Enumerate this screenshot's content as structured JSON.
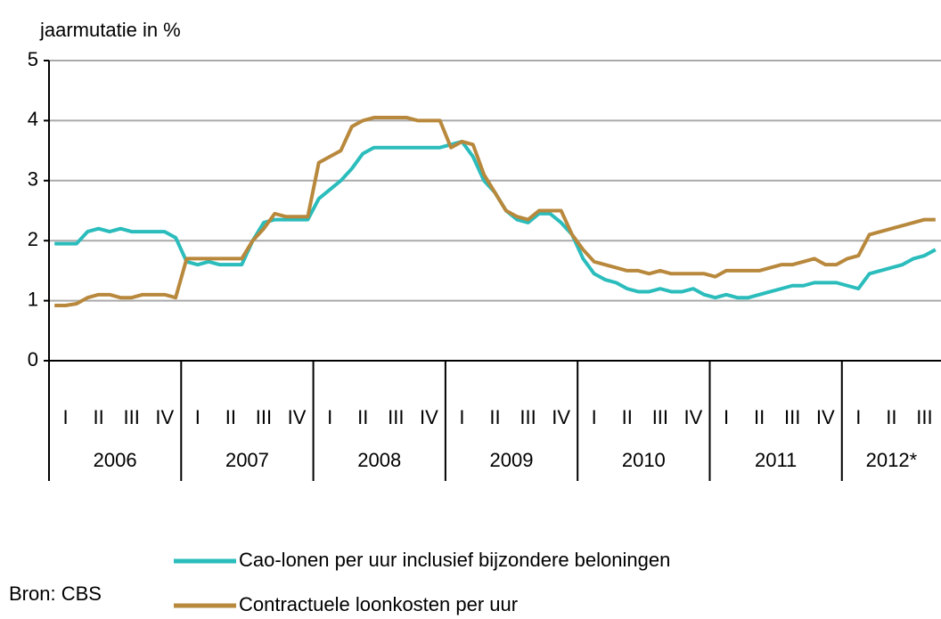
{
  "chart_data": {
    "type": "line",
    "y_axis_label": "jaarmutatie in %",
    "source": "Bron: CBS",
    "categories": [
      null,
      "I",
      null,
      null,
      "II",
      null,
      null,
      "III",
      null,
      null,
      "IV",
      null,
      null,
      "I",
      null,
      null,
      "II",
      null,
      null,
      "III",
      null,
      null,
      "IV",
      null,
      null,
      "I",
      null,
      null,
      "II",
      null,
      null,
      "III",
      null,
      null,
      "IV",
      null,
      null,
      "I",
      null,
      null,
      "II",
      null,
      null,
      "III",
      null,
      null,
      "IV",
      null,
      null,
      "I",
      null,
      null,
      "II",
      null,
      null,
      "III",
      null,
      null,
      "IV",
      null,
      null,
      "I",
      null,
      null,
      "II",
      null,
      null,
      "III",
      null,
      null,
      "IV",
      null,
      null,
      "I",
      null,
      null,
      "II",
      null,
      null,
      "III",
      null
    ],
    "years": [
      "2006",
      "2007",
      "2008",
      "2009",
      "2010",
      "2011",
      "2012*"
    ],
    "ylim": [
      0,
      5
    ],
    "yticks": [
      0,
      1,
      2,
      3,
      4,
      5
    ],
    "grid": true,
    "series": [
      {
        "name": "Cao-lonen per uur inclusief bijzondere beloningen",
        "color": "#2bbcbc",
        "values": [
          1.95,
          1.95,
          1.95,
          2.15,
          2.2,
          2.15,
          2.2,
          2.15,
          2.15,
          2.15,
          2.15,
          2.05,
          1.65,
          1.6,
          1.65,
          1.6,
          1.6,
          1.6,
          2.0,
          2.3,
          2.35,
          2.35,
          2.35,
          2.35,
          2.7,
          2.85,
          3.0,
          3.2,
          3.45,
          3.55,
          3.55,
          3.55,
          3.55,
          3.55,
          3.55,
          3.55,
          3.6,
          3.65,
          3.4,
          3.0,
          2.8,
          2.5,
          2.35,
          2.3,
          2.45,
          2.45,
          2.3,
          2.1,
          1.7,
          1.45,
          1.35,
          1.3,
          1.2,
          1.15,
          1.15,
          1.2,
          1.15,
          1.15,
          1.2,
          1.1,
          1.05,
          1.1,
          1.05,
          1.05,
          1.1,
          1.15,
          1.2,
          1.25,
          1.25,
          1.3,
          1.3,
          1.3,
          1.25,
          1.2,
          1.45,
          1.5,
          1.55,
          1.6,
          1.7,
          1.75,
          1.85
        ]
      },
      {
        "name": "Contractuele loonkosten per uur",
        "color": "#b8883c",
        "values": [
          0.92,
          0.92,
          0.95,
          1.05,
          1.1,
          1.1,
          1.05,
          1.05,
          1.1,
          1.1,
          1.1,
          1.05,
          1.7,
          1.7,
          1.7,
          1.7,
          1.7,
          1.7,
          2.0,
          2.2,
          2.45,
          2.4,
          2.4,
          2.4,
          3.3,
          3.4,
          3.5,
          3.9,
          4.0,
          4.05,
          4.05,
          4.05,
          4.05,
          4.0,
          4.0,
          4.0,
          3.55,
          3.65,
          3.6,
          3.1,
          2.8,
          2.5,
          2.4,
          2.35,
          2.5,
          2.5,
          2.5,
          2.1,
          1.85,
          1.65,
          1.6,
          1.55,
          1.5,
          1.5,
          1.45,
          1.5,
          1.45,
          1.45,
          1.45,
          1.45,
          1.4,
          1.5,
          1.5,
          1.5,
          1.5,
          1.55,
          1.6,
          1.6,
          1.65,
          1.7,
          1.6,
          1.6,
          1.7,
          1.75,
          2.1,
          2.15,
          2.2,
          2.25,
          2.3,
          2.35,
          2.35
        ]
      }
    ]
  }
}
